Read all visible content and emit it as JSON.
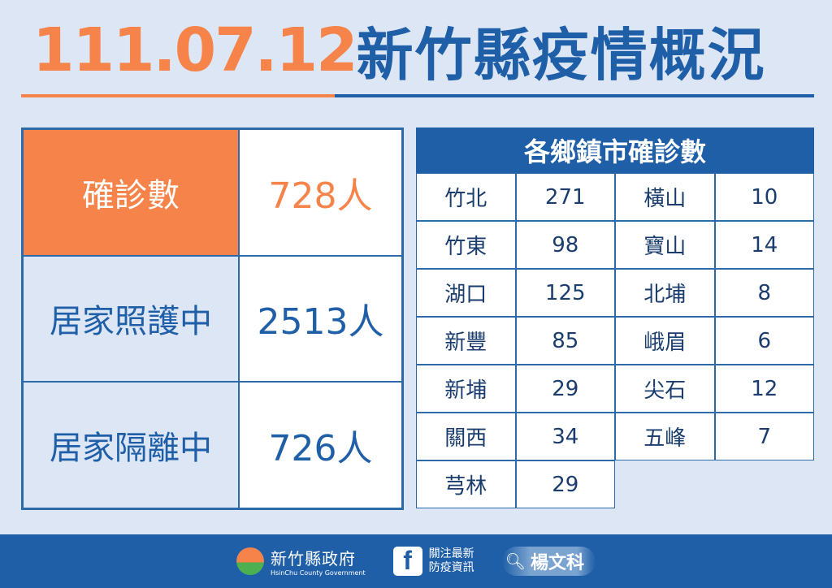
{
  "title": {
    "date": "111.07.12",
    "name": "新竹縣疫情概況"
  },
  "summary": [
    {
      "label": "確診數",
      "value": "728人"
    },
    {
      "label": "居家照護中",
      "value": "2513人"
    },
    {
      "label": "居家隔離中",
      "value": "726人"
    }
  ],
  "towns": {
    "header": "各鄉鎮市確診數",
    "rows": [
      [
        "竹北",
        "271",
        "橫山",
        "10"
      ],
      [
        "竹東",
        "98",
        "寶山",
        "14"
      ],
      [
        "湖口",
        "125",
        "北埔",
        "8"
      ],
      [
        "新豐",
        "85",
        "峨眉",
        "6"
      ],
      [
        "新埔",
        "29",
        "尖石",
        "12"
      ],
      [
        "關西",
        "34",
        "五峰",
        "7"
      ],
      [
        "芎林",
        "29",
        "",
        ""
      ]
    ]
  },
  "footer": {
    "logo_zh": "新竹縣政府",
    "logo_en": "HsinChu County Government",
    "fb_line1": "關注最新",
    "fb_line2": "防疫資訊",
    "search": "楊文科"
  },
  "colors": {
    "orange": "#f5834a",
    "blue": "#1f5fa8",
    "background": "#dde6f5"
  }
}
